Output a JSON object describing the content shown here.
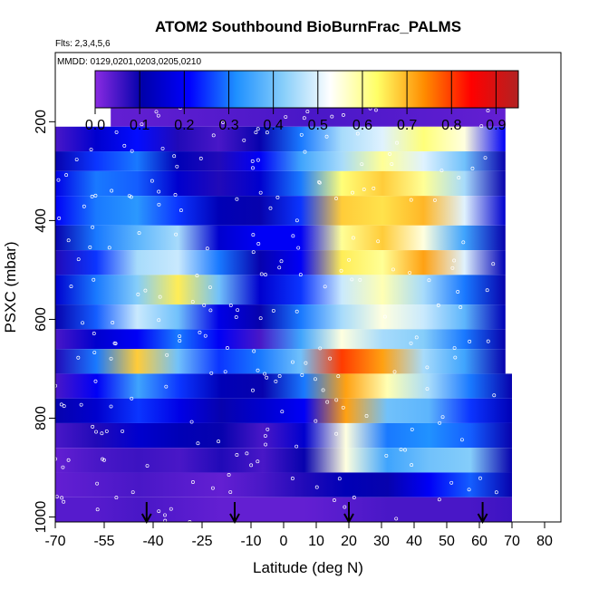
{
  "chart_data": {
    "type": "heatmap",
    "title": "ATOM2 Southbound BioBurnFrac_PALMS",
    "flights": "Flts: 2,3,4,5,6",
    "dates": "MMDD: 0129,0201,0203,0205,0210",
    "xlabel": "Latitude (deg N)",
    "ylabel": "PSXC (mbar)",
    "xlim": [
      -70,
      85
    ],
    "ylim": [
      1010,
      60
    ],
    "x_ticks": [
      -70,
      -55,
      -40,
      -25,
      -10,
      0,
      10,
      20,
      30,
      40,
      50,
      60,
      70,
      80
    ],
    "y_ticks": [
      200,
      400,
      600,
      800,
      1000
    ],
    "colorbar": {
      "min": 0.0,
      "max": 0.95,
      "tick_labels": [
        "0.0",
        "0.1",
        "0.2",
        "0.3",
        "0.4",
        "0.5",
        "0.6",
        "0.7",
        "0.8",
        "0.9"
      ],
      "tick_values": [
        0.0,
        0.1,
        0.2,
        0.3,
        0.4,
        0.5,
        0.6,
        0.7,
        0.8,
        0.9
      ],
      "colors": [
        "#8a2be2",
        "#0000aa",
        "#0000ff",
        "#1e90ff",
        "#87cefa",
        "#ffffff",
        "#ffff66",
        "#ff8c00",
        "#ff0000",
        "#b22222"
      ]
    },
    "arrow_latitudes": [
      -42,
      -15,
      20,
      61
    ],
    "layers": [
      {
        "p": [
          170,
          210
        ],
        "x": [
          -53,
          68
        ],
        "v": [
          0.03,
          0.04,
          0.05,
          0.04,
          0.03
        ]
      },
      {
        "p": [
          210,
          260
        ],
        "x": [
          -70,
          68
        ],
        "v": [
          0.05,
          0.15,
          0.22,
          0.08,
          0.05,
          0.1,
          0.3,
          0.45,
          0.5,
          0.62,
          0.55,
          0.2
        ]
      },
      {
        "p": [
          260,
          300
        ],
        "x": [
          -70,
          68
        ],
        "v": [
          0.1,
          0.25,
          0.3,
          0.12,
          0.08,
          0.2,
          0.35,
          0.45,
          0.6,
          0.5,
          0.4,
          0.1
        ]
      },
      {
        "p": [
          300,
          350
        ],
        "x": [
          -70,
          68
        ],
        "v": [
          0.18,
          0.3,
          0.28,
          0.15,
          0.08,
          0.15,
          0.3,
          0.62,
          0.68,
          0.6,
          0.45,
          0.1
        ]
      },
      {
        "p": [
          350,
          410
        ],
        "x": [
          -70,
          68
        ],
        "v": [
          0.2,
          0.3,
          0.33,
          0.25,
          0.12,
          0.1,
          0.25,
          0.68,
          0.66,
          0.7,
          0.5,
          0.15
        ]
      },
      {
        "p": [
          410,
          460
        ],
        "x": [
          -70,
          68
        ],
        "v": [
          0.1,
          0.3,
          0.38,
          0.45,
          0.15,
          0.2,
          0.2,
          0.6,
          0.68,
          0.55,
          0.35,
          0.1
        ]
      },
      {
        "p": [
          460,
          510
        ],
        "x": [
          -70,
          68
        ],
        "v": [
          0.08,
          0.25,
          0.45,
          0.48,
          0.3,
          0.1,
          0.2,
          0.65,
          0.6,
          0.72,
          0.5,
          0.12
        ]
      },
      {
        "p": [
          510,
          570
        ],
        "x": [
          -70,
          68
        ],
        "v": [
          0.15,
          0.3,
          0.42,
          0.65,
          0.4,
          0.15,
          0.25,
          0.48,
          0.58,
          0.45,
          0.3,
          0.1
        ]
      },
      {
        "p": [
          570,
          620
        ],
        "x": [
          -70,
          68
        ],
        "v": [
          0.1,
          0.28,
          0.48,
          0.4,
          0.18,
          0.1,
          0.3,
          0.45,
          0.55,
          0.48,
          0.38,
          0.12
        ]
      },
      {
        "p": [
          620,
          660
        ],
        "x": [
          -70,
          68
        ],
        "v": [
          0.05,
          0.15,
          0.2,
          0.3,
          0.2,
          0.05,
          0.35,
          0.55,
          0.45,
          0.42,
          0.3,
          0.1
        ]
      },
      {
        "p": [
          660,
          710
        ],
        "x": [
          -70,
          68
        ],
        "v": [
          0.08,
          0.3,
          0.68,
          0.4,
          0.25,
          0.3,
          0.4,
          0.8,
          0.72,
          0.45,
          0.35,
          0.1
        ]
      },
      {
        "p": [
          710,
          760
        ],
        "x": [
          -70,
          70
        ],
        "v": [
          0.05,
          0.2,
          0.35,
          0.25,
          0.12,
          0.1,
          0.3,
          0.72,
          0.58,
          0.45,
          0.3,
          0.1
        ]
      },
      {
        "p": [
          760,
          810
        ],
        "x": [
          -70,
          70
        ],
        "v": [
          0.1,
          0.15,
          0.25,
          0.18,
          0.1,
          0.15,
          0.2,
          0.72,
          0.4,
          0.38,
          0.25,
          0.12
        ]
      },
      {
        "p": [
          810,
          860
        ],
        "x": [
          -70,
          70
        ],
        "v": [
          0.05,
          0.08,
          0.15,
          0.12,
          0.1,
          0.05,
          0.15,
          0.55,
          0.3,
          0.32,
          0.28,
          0.1
        ]
      },
      {
        "p": [
          860,
          910
        ],
        "x": [
          -70,
          70
        ],
        "v": [
          0.03,
          0.05,
          0.06,
          0.05,
          0.08,
          0.05,
          0.1,
          0.55,
          0.35,
          0.4,
          0.42,
          0.1
        ]
      },
      {
        "p": [
          910,
          960
        ],
        "x": [
          -70,
          70
        ],
        "v": [
          0.03,
          0.04,
          0.05,
          0.04,
          0.03,
          0.05,
          0.08,
          0.12,
          0.1,
          0.2,
          0.28,
          0.1
        ]
      },
      {
        "p": [
          960,
          1010
        ],
        "x": [
          -70,
          70
        ],
        "v": [
          0.04,
          0.04,
          0.05,
          0.04,
          0.03,
          0.03,
          0.03,
          0.04,
          0.05,
          0.05,
          0.05,
          0.06
        ]
      }
    ]
  }
}
